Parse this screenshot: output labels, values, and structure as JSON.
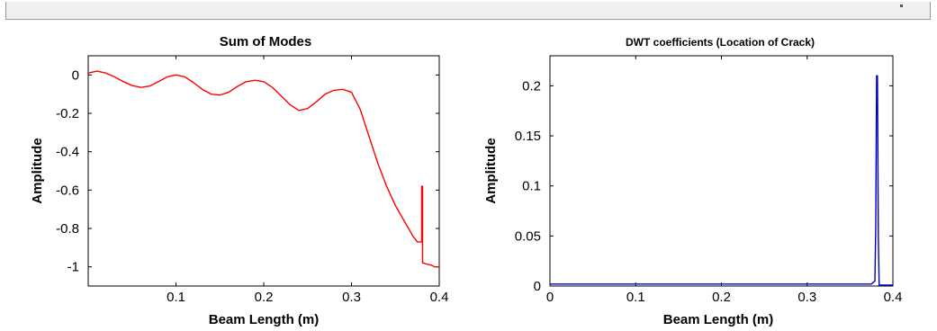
{
  "chart_data": [
    {
      "type": "line",
      "title": "Sum of Modes",
      "xlabel": "Beam Length (m)",
      "ylabel": "Amplitude",
      "xlim": [
        0,
        0.4
      ],
      "ylim": [
        -1.1,
        0.1
      ],
      "xticks": [
        "0.1",
        "0.2",
        "0.3",
        "0.4"
      ],
      "yticks": [
        "0",
        "-0.2",
        "-0.4",
        "-0.6",
        "-0.8",
        "-1"
      ],
      "grid": false,
      "series": [
        {
          "color": "#ff0000",
          "x": [
            0,
            0.01,
            0.02,
            0.03,
            0.04,
            0.05,
            0.06,
            0.07,
            0.08,
            0.09,
            0.1,
            0.11,
            0.12,
            0.13,
            0.14,
            0.15,
            0.16,
            0.17,
            0.18,
            0.19,
            0.2,
            0.21,
            0.22,
            0.23,
            0.24,
            0.25,
            0.26,
            0.27,
            0.28,
            0.29,
            0.3,
            0.31,
            0.32,
            0.33,
            0.34,
            0.35,
            0.36,
            0.37,
            0.375,
            0.38,
            0.38,
            0.381,
            0.381,
            0.382,
            0.385,
            0.39,
            0.395,
            0.4
          ],
          "y": [
            0.01,
            0.02,
            0.01,
            -0.01,
            -0.035,
            -0.055,
            -0.065,
            -0.058,
            -0.035,
            -0.01,
            0.0,
            -0.01,
            -0.04,
            -0.075,
            -0.1,
            -0.105,
            -0.09,
            -0.06,
            -0.035,
            -0.028,
            -0.035,
            -0.065,
            -0.11,
            -0.155,
            -0.185,
            -0.175,
            -0.14,
            -0.1,
            -0.08,
            -0.075,
            -0.09,
            -0.18,
            -0.32,
            -0.46,
            -0.58,
            -0.68,
            -0.76,
            -0.84,
            -0.87,
            -0.87,
            -0.58,
            -0.58,
            -0.98,
            -0.98,
            -0.985,
            -0.99,
            -1.0,
            -1.0
          ]
        }
      ]
    },
    {
      "type": "line",
      "title": "DWT coefficients (Location of Crack)",
      "xlabel": "Beam Length (m)",
      "ylabel": "Amplitude",
      "xlim": [
        0,
        0.4
      ],
      "ylim": [
        0,
        0.23
      ],
      "xticks": [
        "0",
        "0.1",
        "0.2",
        "0.3",
        "0.4"
      ],
      "yticks": [
        "0",
        "0.05",
        "0.1",
        "0.15",
        "0.2"
      ],
      "grid": false,
      "series": [
        {
          "color": "#0000cc",
          "x": [
            0,
            0.05,
            0.1,
            0.15,
            0.2,
            0.25,
            0.3,
            0.35,
            0.375,
            0.379,
            0.38,
            0.381,
            0.382,
            0.383,
            0.384,
            0.385,
            0.4
          ],
          "y": [
            0.002,
            0.002,
            0.002,
            0.002,
            0.002,
            0.002,
            0.002,
            0.002,
            0.002,
            0.005,
            0.06,
            0.21,
            0.21,
            0.05,
            0.0,
            0.001,
            0.001
          ]
        }
      ]
    }
  ]
}
